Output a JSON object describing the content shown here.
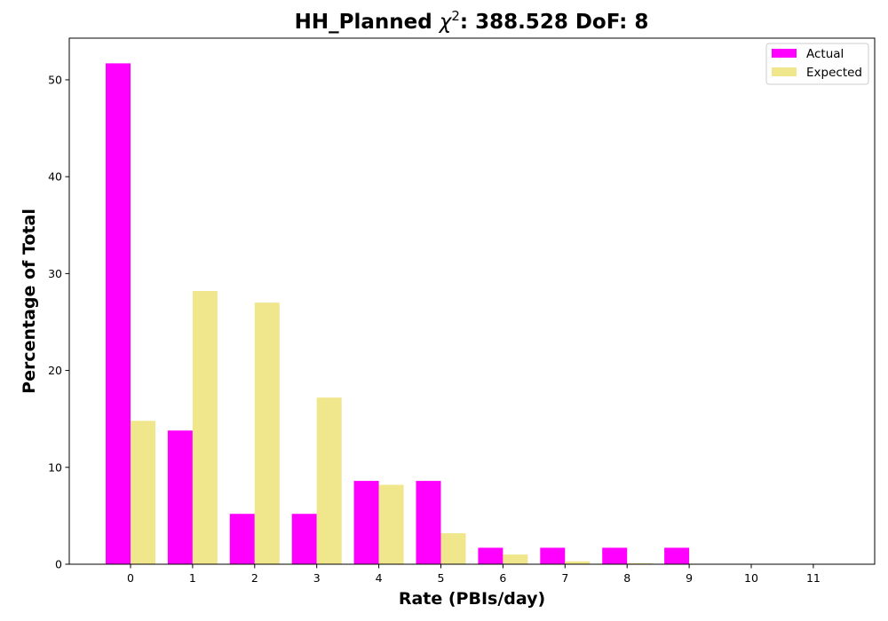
{
  "chart_data": {
    "type": "bar",
    "title_prefix": "HH_Planned ",
    "title_chi": "χ",
    "title_exp": "2",
    "title_suffix": ": 388.528 DoF: 8",
    "xlabel": "Rate (PBIs/day)",
    "ylabel": "Percentage of Total",
    "categories": [
      "0",
      "1",
      "2",
      "3",
      "4",
      "5",
      "6",
      "7",
      "8",
      "9",
      "10",
      "11"
    ],
    "ylim": [
      0,
      54.3
    ],
    "yticks": [
      0,
      10,
      20,
      30,
      40,
      50
    ],
    "series": [
      {
        "name": "Actual",
        "color": "#ff00ff",
        "values": [
          51.7,
          13.8,
          5.2,
          5.2,
          8.6,
          8.6,
          1.7,
          1.7,
          1.7,
          1.7,
          0,
          0
        ]
      },
      {
        "name": "Expected",
        "color": "#f0e68c",
        "values": [
          14.8,
          28.2,
          27.0,
          17.2,
          8.2,
          3.2,
          1.0,
          0.3,
          0.1,
          0.0,
          0,
          0
        ]
      }
    ],
    "legend_position": "top-right"
  }
}
